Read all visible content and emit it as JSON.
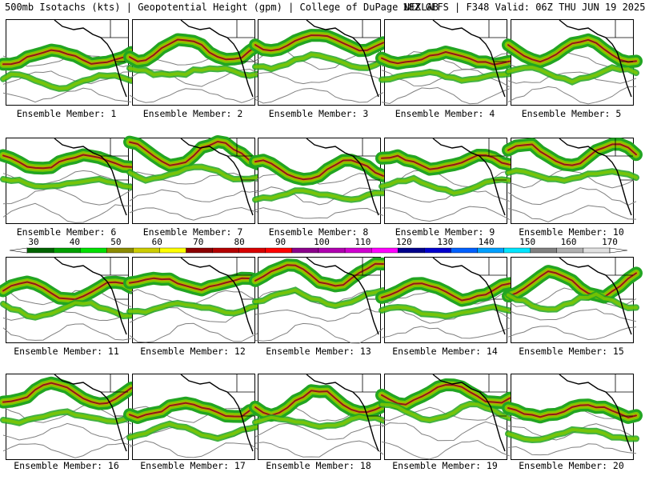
{
  "header": {
    "field": "500mb Isotachs (kts)",
    "height": "Geopotential Height (gpm)",
    "source": "College of DuPage NEXLAB",
    "run": "18Z GEFS",
    "valid": "F348 Valid: 06Z THU JUN 19 2025",
    "sep": "|"
  },
  "panel_caption_prefix": "Ensemble Member:",
  "members": [
    {
      "label": "Ensemble Member: 1"
    },
    {
      "label": "Ensemble Member: 2"
    },
    {
      "label": "Ensemble Member: 3"
    },
    {
      "label": "Ensemble Member: 4"
    },
    {
      "label": "Ensemble Member: 5"
    },
    {
      "label": "Ensemble Member: 6"
    },
    {
      "label": "Ensemble Member: 7"
    },
    {
      "label": "Ensemble Member: 8"
    },
    {
      "label": "Ensemble Member: 9"
    },
    {
      "label": "Ensemble Member: 10"
    },
    {
      "label": "Ensemble Member: 11"
    },
    {
      "label": "Ensemble Member: 12"
    },
    {
      "label": "Ensemble Member: 13"
    },
    {
      "label": "Ensemble Member: 14"
    },
    {
      "label": "Ensemble Member: 15"
    },
    {
      "label": "Ensemble Member: 16"
    },
    {
      "label": "Ensemble Member: 17"
    },
    {
      "label": "Ensemble Member: 18"
    },
    {
      "label": "Ensemble Member: 19"
    },
    {
      "label": "Ensemble Member: 20"
    }
  ],
  "color_scale": {
    "ticks": [
      "30",
      "40",
      "50",
      "60",
      "70",
      "80",
      "90",
      "100",
      "110",
      "120",
      "130",
      "140",
      "150",
      "160",
      "170"
    ],
    "colors": [
      "#006400",
      "#00a000",
      "#00e000",
      "#8b8b00",
      "#cdcd00",
      "#ffff00",
      "#8b0000",
      "#b40000",
      "#d80000",
      "#ff0000",
      "#8b008b",
      "#b000b0",
      "#d000d0",
      "#ff00ff",
      "#00008b",
      "#0000cd",
      "#0060ff",
      "#00a0ff",
      "#00e5ff",
      "#808080",
      "#b0b0b0",
      "#e0e0e0"
    ]
  },
  "map_colors": {
    "jet_outer": "#22a522",
    "jet_mid": "#7ec800",
    "jet_core": "#c8a000",
    "jet_max": "#8b1a1a",
    "height_contour": "#808080",
    "coast": "#000000"
  }
}
